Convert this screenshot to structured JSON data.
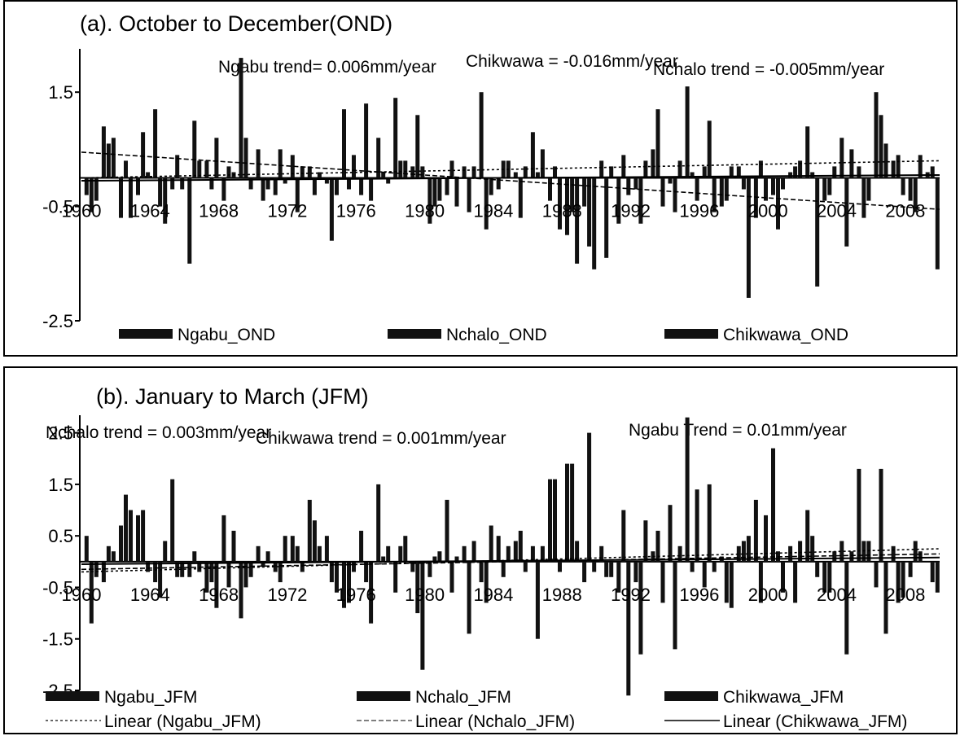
{
  "chart_data": [
    {
      "type": "bar",
      "title": "(a). October to December(OND)",
      "x_tick_labels": [
        "1960",
        "1964",
        "1968",
        "1972",
        "1976",
        "1980",
        "1984",
        "1988",
        "1992",
        "1996",
        "2000",
        "2004",
        "2008"
      ],
      "x_tick_years": [
        1960,
        1964,
        1968,
        1972,
        1976,
        1980,
        1984,
        1988,
        1992,
        1996,
        2000,
        2004,
        2008
      ],
      "y_tick_labels": [
        "1.5",
        "-0.5",
        "-2.5"
      ],
      "y_tick_values": [
        1.5,
        -0.5,
        -2.5
      ],
      "ylim": [
        -2.5,
        2.4
      ],
      "x_range": [
        1960,
        2010
      ],
      "annotations": {
        "ngabu": "Ngabu trend= 0.006mm/year",
        "chikwawa": "Chikwawa = -0.016mm/year",
        "nchalo": "Nchalo trend = -0.005mm/year"
      },
      "legend": [
        {
          "label": "Ngabu_OND",
          "color": "#111111"
        },
        {
          "label": "Nchalo_OND",
          "color": "#111111"
        },
        {
          "label": "Chikwawa_OND",
          "color": "#111111"
        }
      ],
      "series": [
        {
          "name": "Ngabu_OND",
          "values": [
            -0.3,
            0.9,
            -0.7,
            -0.3,
            1.2,
            -0.2,
            -1.5,
            0.3,
            -0.4,
            2.1,
            0.5,
            -0.3,
            0.4,
            0.2,
            -0.1,
            1.2,
            -0.3,
            0.7,
            1.4,
            0.2,
            -0.8,
            -0.3,
            0.2,
            1.5,
            -0.2,
            0.1,
            0.8,
            -0.4,
            -1.0,
            -0.5,
            0.3,
            -0.8,
            -0.2,
            0.5,
            -0.1,
            1.6,
            0.2,
            -0.5,
            0.2,
            -0.7,
            -0.3,
            0.1,
            0.9,
            -0.4,
            0.7,
            0.2,
            1.5,
            0.3,
            -0.4,
            0.1
          ],
          "trend": {
            "start": 0.0,
            "end": 0.3
          }
        },
        {
          "name": "Nchalo_OND",
          "values": [
            -0.6,
            0.6,
            0.3,
            0.8,
            -0.5,
            0.4,
            1.0,
            -0.2,
            0.2,
            0.7,
            -0.4,
            0.5,
            -0.6,
            -0.3,
            -1.1,
            -0.2,
            1.3,
            0.1,
            0.3,
            1.1,
            -0.5,
            0.3,
            -0.6,
            -0.9,
            0.3,
            -0.7,
            0.1,
            0.2,
            -0.6,
            -1.2,
            -1.4,
            0.4,
            -0.8,
            1.2,
            -0.6,
            0.1,
            1.0,
            -0.4,
            -0.2,
            0.3,
            -0.9,
            0.2,
            0.1,
            -0.3,
            -1.2,
            -0.7,
            1.1,
            0.4,
            -0.6,
            0.2
          ],
          "trend": {
            "start": 0.45,
            "end": -0.55
          }
        },
        {
          "name": "Chikwawa_OND",
          "values": [
            -0.4,
            0.7,
            -0.7,
            0.1,
            -0.8,
            -0.2,
            0.3,
            0.7,
            0.1,
            -0.2,
            -0.2,
            -0.1,
            0.2,
            0.1,
            -0.3,
            0.4,
            -0.4,
            -0.1,
            0.3,
            0.2,
            -0.4,
            -0.5,
            0.2,
            -0.3,
            0.3,
            0.2,
            0.5,
            -0.9,
            -1.5,
            -1.6,
            0.2,
            -0.3,
            0.3,
            -0.5,
            0.3,
            -0.4,
            -0.6,
            0.2,
            -2.1,
            -0.4,
            -0.2,
            0.3,
            -1.9,
            0.2,
            0.5,
            -0.4,
            0.6,
            -0.3,
            0.4,
            -1.6
          ],
          "trend": {
            "start": -0.05,
            "end": 0.05
          }
        }
      ]
    },
    {
      "type": "bar",
      "title": "(b). January to March (JFM)",
      "x_tick_labels": [
        "1960",
        "1964",
        "1968",
        "1972",
        "1976",
        "1980",
        "1984",
        "1988",
        "1992",
        "1996",
        "2000",
        "2004",
        "2008"
      ],
      "x_tick_years": [
        1960,
        1964,
        1968,
        1972,
        1976,
        1980,
        1984,
        1988,
        1992,
        1996,
        2000,
        2004,
        2008
      ],
      "y_tick_labels": [
        "2.5",
        "1.5",
        "0.5",
        "-0.5",
        "-1.5",
        "-2.5"
      ],
      "y_tick_values": [
        2.5,
        1.5,
        0.5,
        -0.5,
        -1.5,
        -2.5
      ],
      "ylim": [
        -2.5,
        3.0
      ],
      "x_range": [
        1960,
        2010
      ],
      "annotations": {
        "nchalo": "Nchalo trend = 0.003mm/year",
        "chikwawa": "Chikwawa trend = 0.001mm/year",
        "ngabu": "Ngabu Trend = 0.01mm/year"
      },
      "legend": [
        {
          "label": "Ngabu_JFM",
          "color": "#111111"
        },
        {
          "label": "Nchalo_JFM",
          "color": "#111111"
        },
        {
          "label": "Chikwawa_JFM",
          "color": "#111111"
        },
        {
          "label": "Linear (Ngabu_JFM)",
          "color": "#333333"
        },
        {
          "label": "Linear (Nchalo_JFM)",
          "color": "#555555"
        },
        {
          "label": "Linear (Chikwawa_JFM)",
          "color": "#000000"
        }
      ],
      "series": [
        {
          "name": "Ngabu_JFM",
          "values": [
            0.5,
            -0.4,
            0.7,
            0.9,
            -0.4,
            1.6,
            -0.3,
            -0.6,
            0.9,
            -1.1,
            0.3,
            -0.2,
            0.5,
            1.2,
            0.5,
            -0.9,
            0.6,
            1.5,
            -0.6,
            -0.2,
            -0.3,
            1.2,
            0.3,
            -0.4,
            0.5,
            0.4,
            0.3,
            1.6,
            1.9,
            -0.4,
            0.3,
            -0.6,
            -0.4,
            0.2,
            1.1,
            2.8,
            -0.5,
            0.1,
            0.3,
            1.2,
            2.2,
            0.3,
            1.0,
            -0.6,
            0.4,
            1.8,
            -0.5,
            0.3,
            -0.3,
            0.0
          ],
          "trend": {
            "start": -0.2,
            "end": 0.25
          }
        },
        {
          "name": "Nchalo_JFM",
          "values": [
            -1.2,
            0.3,
            1.3,
            1.0,
            -0.7,
            -0.3,
            0.2,
            -0.4,
            -0.5,
            -0.5,
            -0.1,
            -0.4,
            0.3,
            0.8,
            -0.4,
            -0.8,
            -0.4,
            0.1,
            0.3,
            -1.0,
            0.1,
            -0.6,
            -1.4,
            -0.8,
            -0.3,
            0.6,
            -1.5,
            1.6,
            1.9,
            2.5,
            -0.3,
            1.0,
            -1.8,
            0.6,
            -1.7,
            -0.2,
            1.5,
            -0.8,
            0.4,
            -0.8,
            0.2,
            -0.8,
            0.5,
            -0.6,
            -1.8,
            0.4,
            1.8,
            -0.8,
            0.4,
            -0.4
          ],
          "trend": {
            "start": -0.15,
            "end": 0.15
          }
        },
        {
          "name": "Chikwawa_JFM",
          "values": [
            -0.3,
            0.2,
            1.0,
            -0.2,
            0.4,
            -0.3,
            -0.2,
            -0.9,
            0.6,
            -0.3,
            0.2,
            0.5,
            -0.2,
            0.3,
            -0.6,
            -0.2,
            -1.2,
            0.3,
            0.5,
            -2.1,
            0.2,
            0.1,
            0.4,
            0.7,
            0.3,
            -0.2,
            0.3,
            -0.2,
            0.4,
            -0.2,
            -0.3,
            -2.6,
            0.8,
            -0.8,
            0.3,
            1.4,
            -0.2,
            -0.9,
            0.5,
            0.9,
            -0.6,
            0.4,
            -0.3,
            0.2,
            0.2,
            0.4,
            -1.4,
            -0.7,
            0.2,
            -0.6
          ],
          "trend": {
            "start": -0.05,
            "end": 0.08
          }
        }
      ]
    }
  ]
}
